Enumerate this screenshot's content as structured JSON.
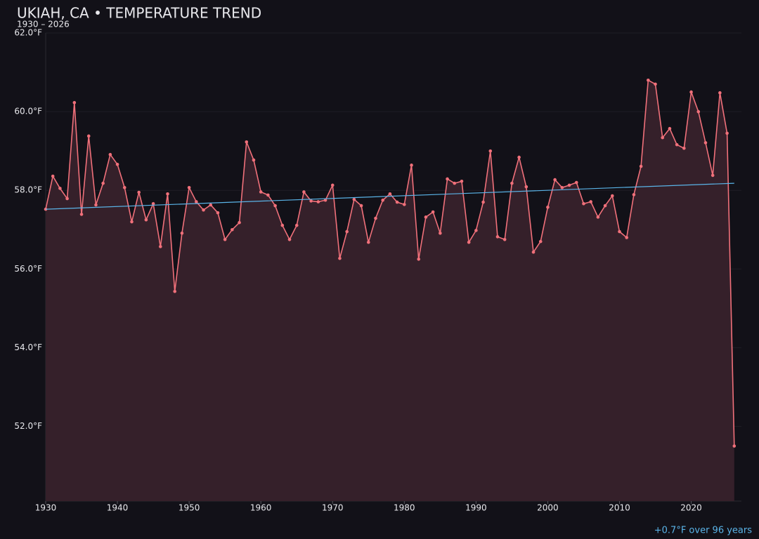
{
  "chart_data": {
    "type": "line",
    "title": "UKIAH, CA • TEMPERATURE TREND",
    "subtitle": "1930 – 2026",
    "annotation": "+0.7°F over 96 years",
    "x": [
      1930,
      1931,
      1932,
      1933,
      1934,
      1935,
      1936,
      1937,
      1938,
      1939,
      1940,
      1941,
      1942,
      1943,
      1944,
      1945,
      1946,
      1947,
      1948,
      1949,
      1950,
      1951,
      1952,
      1953,
      1954,
      1955,
      1956,
      1957,
      1958,
      1959,
      1960,
      1961,
      1962,
      1963,
      1964,
      1965,
      1966,
      1967,
      1968,
      1969,
      1970,
      1971,
      1972,
      1973,
      1974,
      1975,
      1976,
      1977,
      1978,
      1979,
      1980,
      1981,
      1982,
      1983,
      1984,
      1985,
      1986,
      1987,
      1988,
      1989,
      1990,
      1991,
      1992,
      1993,
      1994,
      1995,
      1996,
      1997,
      1998,
      1999,
      2000,
      2001,
      2002,
      2003,
      2004,
      2005,
      2006,
      2007,
      2008,
      2009,
      2010,
      2011,
      2012,
      2013,
      2014,
      2015,
      2016,
      2017,
      2018,
      2019,
      2020,
      2021,
      2022,
      2023,
      2024,
      2025,
      2026
    ],
    "series": [
      {
        "color": "#f0707a",
        "fill": "#35202a",
        "values": [
          57.52,
          58.36,
          58.05,
          57.79,
          60.23,
          57.39,
          59.38,
          57.63,
          58.18,
          58.91,
          58.66,
          58.07,
          57.2,
          57.95,
          57.25,
          57.66,
          56.57,
          57.91,
          55.43,
          56.91,
          58.07,
          57.71,
          57.5,
          57.63,
          57.43,
          56.75,
          57.0,
          57.18,
          59.23,
          58.77,
          57.96,
          57.88,
          57.61,
          57.11,
          56.75,
          57.11,
          57.96,
          57.73,
          57.71,
          57.75,
          58.13,
          56.27,
          56.95,
          57.77,
          57.61,
          56.68,
          57.29,
          57.75,
          57.91,
          57.7,
          57.64,
          58.64,
          56.25,
          57.32,
          57.45,
          56.91,
          58.29,
          58.18,
          58.23,
          56.68,
          56.98,
          57.7,
          59.0,
          56.82,
          56.75,
          58.18,
          58.84,
          58.09,
          56.43,
          56.7,
          57.57,
          58.27,
          58.07,
          58.13,
          58.2,
          57.66,
          57.71,
          57.32,
          57.61,
          57.86,
          56.95,
          56.8,
          57.89,
          58.61,
          60.8,
          60.7,
          59.34,
          59.57,
          59.16,
          59.07,
          60.5,
          60.0,
          59.21,
          58.38,
          60.48,
          59.45,
          51.5
        ]
      }
    ],
    "trend": {
      "color": "#5ab4e8",
      "x": [
        1930,
        2026
      ],
      "values": [
        57.52,
        58.18
      ]
    },
    "xlim": [
      1930,
      2027
    ],
    "xticks": [
      1930,
      1940,
      1950,
      1960,
      1970,
      1980,
      1990,
      2000,
      2010,
      2020
    ],
    "ylim": [
      50.1,
      62
    ],
    "yticks": [
      {
        "value": 52,
        "label": "52.0°F"
      },
      {
        "value": 54,
        "label": "54.0°F"
      },
      {
        "value": 56,
        "label": "56.0°F"
      },
      {
        "value": 58,
        "label": "58.0°F"
      },
      {
        "value": 60,
        "label": "60.0°F"
      },
      {
        "value": 62,
        "label": "62.0°F"
      }
    ],
    "grid": true
  }
}
